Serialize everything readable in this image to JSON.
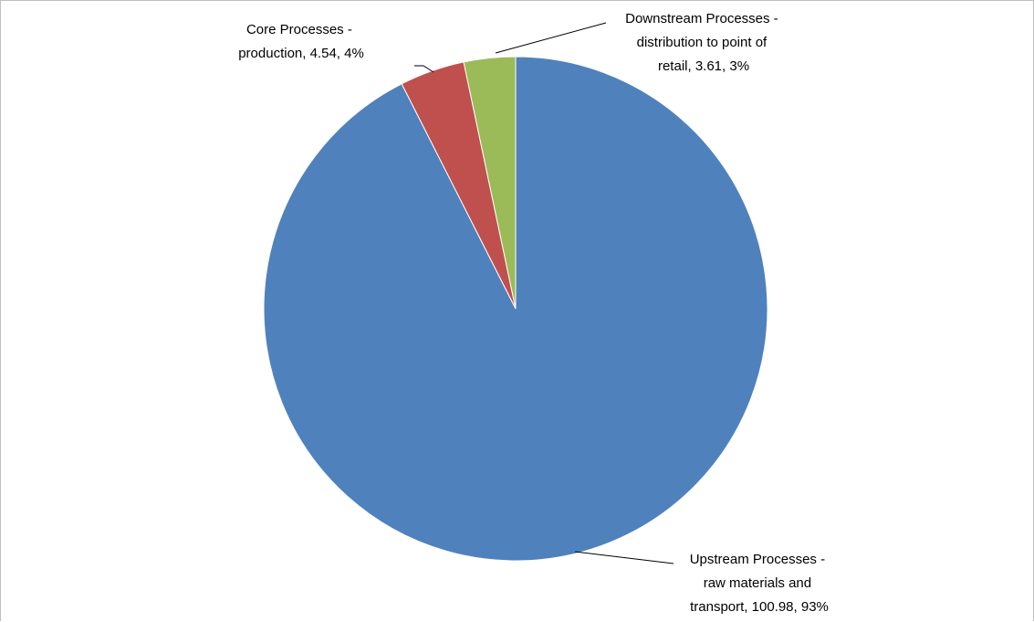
{
  "chart_data": {
    "type": "pie",
    "title": "",
    "legend": "none",
    "start_angle_deg": 0,
    "direction": "clockwise",
    "slices": [
      {
        "name": "Upstream Processes - raw materials and transport",
        "value": 100.98,
        "percent_label": "93%",
        "color": "#4F81BD",
        "label_lines": [
          "Upstream Processes -",
          "raw materials and",
          "transport, 100.98, 93%"
        ]
      },
      {
        "name": "Core Processes - production",
        "value": 4.54,
        "percent_label": "4%",
        "color": "#C0504D",
        "label_lines": [
          "Core Processes -",
          "production, 4.54, 4%"
        ]
      },
      {
        "name": "Downstream Processes - distribution to point of retail",
        "value": 3.61,
        "percent_label": "3%",
        "color": "#9BBB59",
        "label_lines": [
          "Downstream Processes -",
          "distribution to point of",
          "retail, 3.61, 3%"
        ]
      }
    ]
  }
}
